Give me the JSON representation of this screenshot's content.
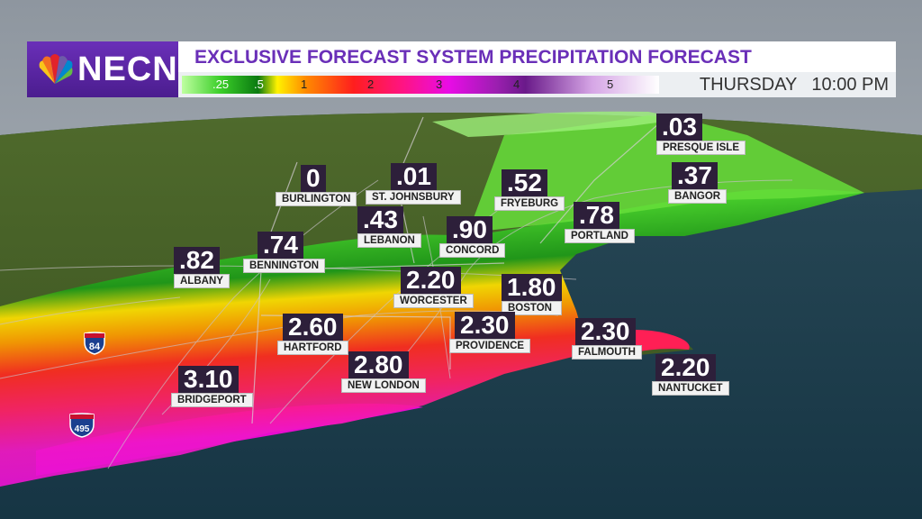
{
  "header": {
    "brand": "NECN",
    "title": "EXCLUSIVE FORECAST SYSTEM PRECIPITATION FORECAST",
    "day": "THURSDAY",
    "time": "10:00 PM"
  },
  "legend": {
    "ticks": [
      ".25",
      ".5",
      "1",
      "2",
      "3",
      "4",
      "5"
    ],
    "colors": [
      "#3ccf2a",
      "#0a7a10",
      "#ffd000",
      "#ff1e1e",
      "#e80ce6",
      "#6a1a8a",
      "#ffffff"
    ]
  },
  "cities": [
    {
      "name": "PRESQUE ISLE",
      "value": ".03"
    },
    {
      "name": "BURLINGTON",
      "value": "0"
    },
    {
      "name": "ST. JOHNSBURY",
      "value": ".01"
    },
    {
      "name": "FRYEBURG",
      "value": ".52"
    },
    {
      "name": "BANGOR",
      "value": ".37"
    },
    {
      "name": "LEBANON",
      "value": ".43"
    },
    {
      "name": "CONCORD",
      "value": ".90"
    },
    {
      "name": "PORTLAND",
      "value": ".78"
    },
    {
      "name": "BENNINGTON",
      "value": ".74"
    },
    {
      "name": "ALBANY",
      "value": ".82"
    },
    {
      "name": "WORCESTER",
      "value": "2.20"
    },
    {
      "name": "BOSTON",
      "value": "1.80"
    },
    {
      "name": "HARTFORD",
      "value": "2.60"
    },
    {
      "name": "PROVIDENCE",
      "value": "2.30"
    },
    {
      "name": "FALMOUTH",
      "value": "2.30"
    },
    {
      "name": "NEW LONDON",
      "value": "2.80"
    },
    {
      "name": "BRIDGEPORT",
      "value": "3.10"
    },
    {
      "name": "NANTUCKET",
      "value": "2.20"
    }
  ],
  "highways": [
    {
      "name": "interstate-84",
      "number": "84"
    },
    {
      "name": "interstate-495",
      "number": "495"
    }
  ]
}
